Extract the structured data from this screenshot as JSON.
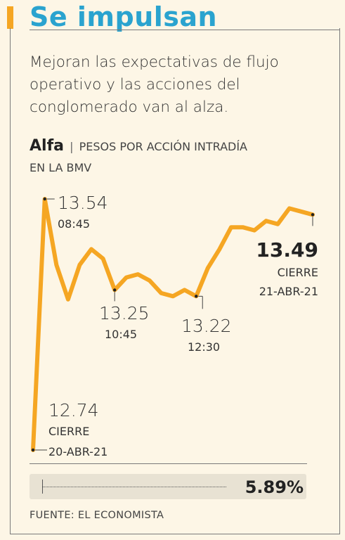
{
  "header": {
    "title": "Se impulsan",
    "subtitle_lines": [
      "Mejoran las expectativas de flujo",
      "operativo y las  acciones del",
      "conglomerado van al alza."
    ]
  },
  "series_label": {
    "brand": "Alfa",
    "separator": "|",
    "line1": "PESOS POR ACCIÓN INTRADÍA",
    "line2": "EN LA BMV"
  },
  "chart_data": {
    "type": "line",
    "title": "",
    "xlabel": "",
    "ylabel": "",
    "ylim": [
      12.7,
      13.6
    ],
    "series": [
      {
        "values": [
          12.74,
          13.54,
          13.33,
          13.22,
          13.33,
          13.38,
          13.35,
          13.25,
          13.29,
          13.3,
          13.28,
          13.24,
          13.23,
          13.25,
          13.23,
          13.32,
          13.38,
          13.45,
          13.45,
          13.44,
          13.47,
          13.46,
          13.51,
          13.5,
          13.49
        ]
      }
    ],
    "annotations": [
      {
        "value": "13.54",
        "time": "08:45"
      },
      {
        "value": "13.25",
        "time": "10:45"
      },
      {
        "value": "13.22",
        "time": "12:30"
      },
      {
        "value": "12.74",
        "label": "CIERRE",
        "date": "20-ABR-21"
      },
      {
        "value": "13.49",
        "label": "CIERRE",
        "date": "21-ABR-21"
      }
    ],
    "change": "5.89%",
    "colors": {
      "line": "#f5a623",
      "title": "#2aa3cf",
      "accent": "#f5a623",
      "background": "#fdf6e6"
    }
  },
  "footer": {
    "source": "FUENTE: EL ECONOMISTA"
  }
}
